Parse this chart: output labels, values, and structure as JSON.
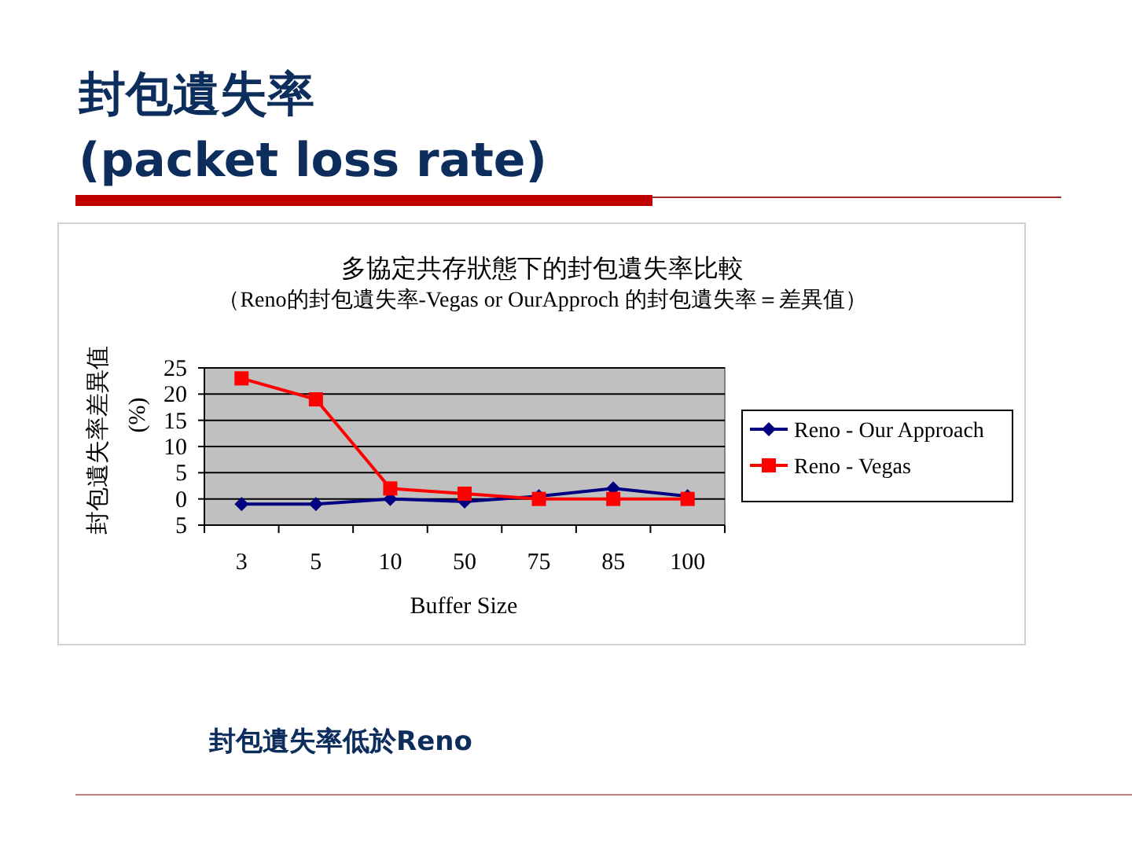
{
  "chart_data": {
    "type": "line",
    "title": "多協定共存狀態下的封包遺失率比較",
    "subtitle": "（Reno的封包遺失率-Vegas or OurApproch 的封包遺失率＝差異值）",
    "xlabel": "Buffer Size",
    "ylabel": "封包遺失率差異值 (%)",
    "annotations": [
      "封包遺失率",
      "(packet loss rate)",
      "封包遺失率低於Reno"
    ],
    "categories": [
      "3",
      "5",
      "10",
      "50",
      "75",
      "85",
      "100"
    ],
    "ylim": [
      -5,
      25
    ],
    "yticks": [
      {
        "value": -5,
        "label": "5"
      },
      0,
      5,
      10,
      15,
      20,
      25
    ],
    "grid": "y",
    "legend": "right",
    "series": [
      {
        "name": "Reno - Our Approach",
        "color": "#000080",
        "marker": "diamond",
        "values": [
          -1,
          -1,
          0,
          -0.5,
          0.5,
          2,
          0.5
        ]
      },
      {
        "name": "Reno - Vegas",
        "color": "#ff0000",
        "marker": "square",
        "values": [
          23,
          19,
          2,
          1,
          0,
          0,
          0
        ]
      }
    ]
  }
}
